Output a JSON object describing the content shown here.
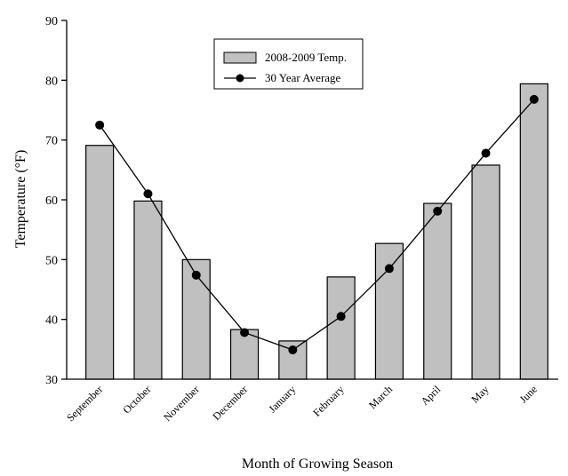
{
  "chart_data": {
    "type": "bar",
    "categories": [
      "September",
      "October",
      "November",
      "December",
      "January",
      "February",
      "March",
      "April",
      "May",
      "June"
    ],
    "series": [
      {
        "name": "2008-2009 Temp.",
        "type": "bar",
        "color": "#c0c0c0",
        "values": [
          69.1,
          59.8,
          50.0,
          38.3,
          36.4,
          47.1,
          52.7,
          59.4,
          65.8,
          79.4
        ]
      },
      {
        "name": "30 Year Average",
        "type": "line",
        "color": "#000000",
        "values": [
          72.5,
          61.0,
          47.4,
          37.8,
          34.9,
          40.5,
          48.5,
          58.1,
          67.8,
          76.8
        ]
      }
    ],
    "xlabel": "Month of Growing Season",
    "ylabel": "Temperature (°F)",
    "ylim": [
      30,
      90
    ],
    "yticks": [
      30,
      40,
      50,
      60,
      70,
      80,
      90
    ],
    "legend_position": "top-center",
    "grid": false
  }
}
